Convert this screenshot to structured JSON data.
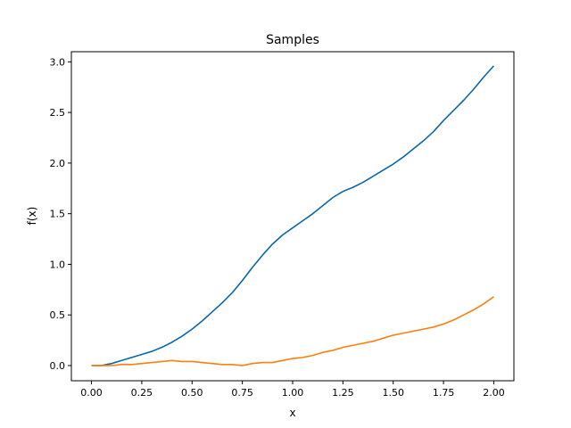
{
  "chart_data": {
    "type": "line",
    "title": "Samples",
    "xlabel": "x",
    "ylabel": "f(x)",
    "xlim": [
      -0.1,
      2.1
    ],
    "ylim": [
      -0.15,
      3.1
    ],
    "xticks": [
      "0.00",
      "0.25",
      "0.50",
      "0.75",
      "1.00",
      "1.25",
      "1.50",
      "1.75",
      "2.00"
    ],
    "yticks": [
      "0.0",
      "0.5",
      "1.0",
      "1.5",
      "2.0",
      "2.5",
      "3.0"
    ],
    "grid": false,
    "series": [
      {
        "color": "#0868ac",
        "x": [
          0.0,
          0.05,
          0.1,
          0.15,
          0.2,
          0.25,
          0.3,
          0.35,
          0.4,
          0.45,
          0.5,
          0.55,
          0.6,
          0.65,
          0.7,
          0.75,
          0.8,
          0.85,
          0.9,
          0.95,
          1.0,
          1.05,
          1.1,
          1.15,
          1.2,
          1.25,
          1.3,
          1.35,
          1.4,
          1.45,
          1.5,
          1.55,
          1.6,
          1.65,
          1.7,
          1.75,
          1.8,
          1.85,
          1.9,
          1.95,
          2.0
        ],
        "y": [
          0.0,
          0.0,
          0.02,
          0.05,
          0.08,
          0.11,
          0.14,
          0.18,
          0.23,
          0.29,
          0.36,
          0.44,
          0.53,
          0.62,
          0.72,
          0.84,
          0.97,
          1.09,
          1.2,
          1.29,
          1.36,
          1.43,
          1.5,
          1.58,
          1.66,
          1.72,
          1.76,
          1.81,
          1.87,
          1.93,
          1.99,
          2.06,
          2.14,
          2.22,
          2.31,
          2.42,
          2.52,
          2.62,
          2.73,
          2.85,
          2.96
        ]
      },
      {
        "color": "#ff7f0e",
        "x": [
          0.0,
          0.05,
          0.1,
          0.15,
          0.2,
          0.25,
          0.3,
          0.35,
          0.4,
          0.45,
          0.5,
          0.55,
          0.6,
          0.65,
          0.7,
          0.75,
          0.8,
          0.85,
          0.9,
          0.95,
          1.0,
          1.05,
          1.1,
          1.15,
          1.2,
          1.25,
          1.3,
          1.35,
          1.4,
          1.45,
          1.5,
          1.55,
          1.6,
          1.65,
          1.7,
          1.75,
          1.8,
          1.85,
          1.9,
          1.95,
          2.0
        ],
        "y": [
          0.0,
          0.0,
          0.0,
          0.01,
          0.01,
          0.02,
          0.03,
          0.04,
          0.05,
          0.04,
          0.04,
          0.03,
          0.02,
          0.01,
          0.01,
          0.0,
          0.02,
          0.03,
          0.03,
          0.05,
          0.07,
          0.08,
          0.1,
          0.13,
          0.15,
          0.18,
          0.2,
          0.22,
          0.24,
          0.27,
          0.3,
          0.32,
          0.34,
          0.36,
          0.38,
          0.41,
          0.45,
          0.5,
          0.55,
          0.61,
          0.68
        ]
      }
    ]
  }
}
